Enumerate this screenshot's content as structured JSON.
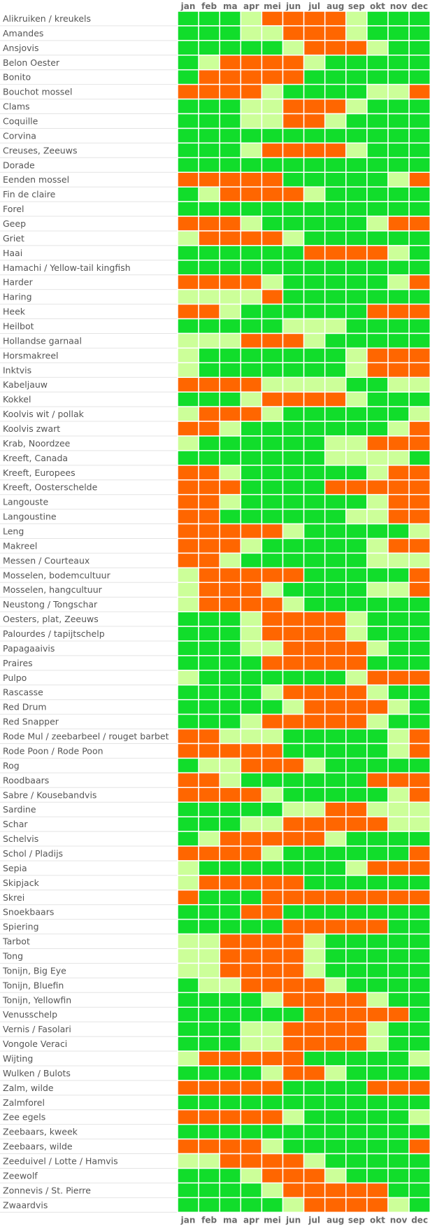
{
  "chart_data": {
    "type": "heatmap",
    "title": "",
    "xlabel": "",
    "ylabel": "",
    "months": [
      "jan",
      "feb",
      "ma",
      "apr",
      "mei",
      "jun",
      "jul",
      "aug",
      "sep",
      "okt",
      "nov",
      "dec"
    ],
    "colors": {
      "O": "#ff6600",
      "G": "#11dd2b",
      "Y": "#99cc33",
      "L": "#ccff99"
    },
    "rows": [
      {
        "name": "Alikruiken / kreukels",
        "values": "GGGLOOOOLGGG"
      },
      {
        "name": "Amandes",
        "values": "GGGLLOOOLGGG"
      },
      {
        "name": "Ansjovis",
        "values": "GGGGGLOOOLGG"
      },
      {
        "name": "Belon Oester",
        "values": "GLOOOOLGGGGG"
      },
      {
        "name": "Bonito",
        "values": "GOOOOOGGGGGG"
      },
      {
        "name": "Bouchot mossel",
        "values": "OOOOLGGGGLLO"
      },
      {
        "name": "Clams",
        "values": "GGGLLOOOLGGG"
      },
      {
        "name": "Coquille",
        "values": "GGGLLOOLGGGG"
      },
      {
        "name": "Corvina",
        "values": "GGGGGGGGGGGG"
      },
      {
        "name": "Creuses, Zeeuws",
        "values": "GGGLOOOOLGGG"
      },
      {
        "name": "Dorade",
        "values": "GGGGGGGGGGGG"
      },
      {
        "name": "Eenden mossel",
        "values": "OOOOOGGGGGLO"
      },
      {
        "name": "Fin de claire",
        "values": "GLOOOOLGGGGG"
      },
      {
        "name": "Forel",
        "values": "GGGGGGGGGGGG"
      },
      {
        "name": "Geep",
        "values": "OOOLGGGGGLOO"
      },
      {
        "name": "Griet",
        "values": "LOOOOLGGGGGG"
      },
      {
        "name": "Haai",
        "values": "GGGGGGOOOOLG"
      },
      {
        "name": "Hamachi / Yellow-tail kingfish",
        "values": "GGGGGGGGGGGG"
      },
      {
        "name": "Harder",
        "values": "OOOOLGGGGGLO"
      },
      {
        "name": "Haring",
        "values": "LLLLOGGGGGGG"
      },
      {
        "name": "Heek",
        "values": "OOLGGGGGGOOO"
      },
      {
        "name": "Heilbot",
        "values": "GGGGGLLLGGGG"
      },
      {
        "name": "Hollandse garnaal",
        "values": "LLLOOOLGGGGG"
      },
      {
        "name": "Horsmakreel",
        "values": "LGGGGGGGLOOO"
      },
      {
        "name": "Inktvis",
        "values": "LGGGGGGGLOOO"
      },
      {
        "name": "Kabeljauw",
        "values": "OOOOLLLLGGLL"
      },
      {
        "name": "Kokkel",
        "values": "GGGLOOOOLGGG"
      },
      {
        "name": "Koolvis wit / pollak",
        "values": "LOOOLGGGGGGL"
      },
      {
        "name": "Koolvis zwart",
        "values": "OOLGGGGGGGLO"
      },
      {
        "name": "Krab, Noordzee",
        "values": "LGGGGGGLLOOO"
      },
      {
        "name": "Kreeft, Canada",
        "values": "GGGGGGGLLLLG"
      },
      {
        "name": "Kreeft, Europees",
        "values": "OOLGGGGGGLOO"
      },
      {
        "name": "Kreeft, Oosterschelde",
        "values": "OOOGGGGOOOOO"
      },
      {
        "name": "Langouste",
        "values": "OOLGGGGGGLOO"
      },
      {
        "name": "Langoustine",
        "values": "OOGGGGGGLLOO"
      },
      {
        "name": "Leng",
        "values": "OOOOOLGGGGGL"
      },
      {
        "name": "Makreel",
        "values": "OOOLGGGGGLOO"
      },
      {
        "name": "Messen / Courteaux",
        "values": "OOLGGGGGGLLL"
      },
      {
        "name": "Mosselen, bodemcultuur",
        "values": "LOOOOOGGGGGO"
      },
      {
        "name": "Mosselen, hangcultuur",
        "values": "LOOOLGGGGLLO"
      },
      {
        "name": "Neustong / Tongschar",
        "values": "LOOOOLGGGGGG"
      },
      {
        "name": "Oesters, plat, Zeeuws",
        "values": "GGGLOOOOLGGG"
      },
      {
        "name": "Palourdes / tapijtschelp",
        "values": "GGGLOOOOLGGG"
      },
      {
        "name": "Papagaaivis",
        "values": "GGGLLOOOOLGG"
      },
      {
        "name": "Praires",
        "values": "GGGGOOOOOGGG"
      },
      {
        "name": "Pulpo",
        "values": "LGGGGGGGLOOO"
      },
      {
        "name": "Rascasse",
        "values": "GGGGLOOOOLGG"
      },
      {
        "name": "Red Drum",
        "values": "GGGGGLOOOOLG"
      },
      {
        "name": "Red Snapper",
        "values": "GGGLOOOOOLGG"
      },
      {
        "name": "Rode Mul / zeebarbeel / rouget barbet",
        "values": "OOLLLGGGGGLO"
      },
      {
        "name": "Rode Poon / Rode Poon",
        "values": "OOOOOGGGGGLO"
      },
      {
        "name": "Rog",
        "values": "GLLOOOLGGGGG"
      },
      {
        "name": "Roodbaars",
        "values": "OOLGGGGGGOOO"
      },
      {
        "name": "Sabre / Kousebandvis",
        "values": "OOOOLGGGGGLO"
      },
      {
        "name": "Sardine",
        "values": "GGGGGLLOOLLL"
      },
      {
        "name": "Schar",
        "values": "GGGLLOOOOOLL"
      },
      {
        "name": "Schelvis",
        "values": "GLOOOOOLGGGG"
      },
      {
        "name": "Schol / Pladijs",
        "values": "OOOOLGGGGGGO"
      },
      {
        "name": "Sepia",
        "values": "LGGGGGGGLOOO"
      },
      {
        "name": "Skipjack",
        "values": "LOOOOOGGGGGG"
      },
      {
        "name": "Skrei",
        "values": "OGGGOOOOOOOO"
      },
      {
        "name": "Snoekbaars",
        "values": "GGGOOGGGGGGG"
      },
      {
        "name": "Spiering",
        "values": "GGGGGOOOOOGG"
      },
      {
        "name": "Tarbot",
        "values": "LLOOOOLGGGGG"
      },
      {
        "name": "Tong",
        "values": "LLOOOOLGGGGG"
      },
      {
        "name": "Tonijn, Big Eye",
        "values": "LLOOOOLGGGGG"
      },
      {
        "name": "Tonijn, Bluefin",
        "values": "GLLOOOOLGGGG"
      },
      {
        "name": "Tonijn, Yellowfin",
        "values": "GGGGLOOOOLGG"
      },
      {
        "name": "Venusschelp",
        "values": "GGGGGGOOOOOG"
      },
      {
        "name": "Vernis / Fasolari",
        "values": "GGGLLOOOOLGG"
      },
      {
        "name": "Vongole Veraci",
        "values": "GGGLLOOOOLGG"
      },
      {
        "name": "Wijting",
        "values": "LOOOOOGGGGGL"
      },
      {
        "name": "Wulken / Bulots",
        "values": "GGGGLOOLGGGG"
      },
      {
        "name": "Zalm, wilde",
        "values": "OOOOOGGGGOOO"
      },
      {
        "name": "Zalmforel",
        "values": "GGGGGGGGGGGG"
      },
      {
        "name": "Zee egels",
        "values": "OOOOOLGGGGGL"
      },
      {
        "name": "Zeebaars, kweek",
        "values": "GGGGGGGGGGGG"
      },
      {
        "name": "Zeebaars, wilde",
        "values": "OOOOLGGGGGGO"
      },
      {
        "name": "Zeeduivel / Lotte / Hamvis",
        "values": "LLOOOOLGGGGG"
      },
      {
        "name": "Zeewolf",
        "values": "GGGLOOOLGGGG"
      },
      {
        "name": "Zonnevis / St. Pierre",
        "values": "GGGGLOOOOOGG"
      },
      {
        "name": "Zwaardvis",
        "values": "GGGGGLOOOOLG"
      }
    ]
  }
}
